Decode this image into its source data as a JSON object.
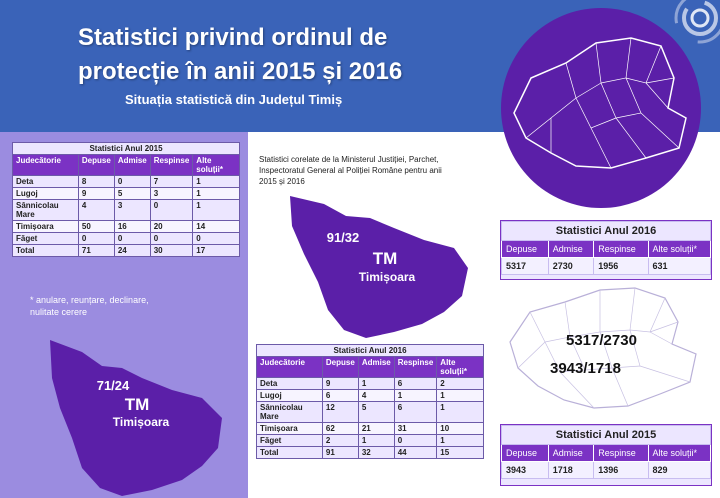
{
  "header": {
    "title_line1": "Statistici privind ordinul de",
    "title_line2": "protecție în anii 2015 și 2016",
    "subtitle": "Situația statistică din Județul Timiș"
  },
  "table_2015_left": {
    "caption": "Statistici Anul 2015",
    "columns": [
      "Judecătorie",
      "Depuse",
      "Admise",
      "Respinse",
      "Alte soluții*"
    ],
    "rows": [
      [
        "Deta",
        "8",
        "0",
        "7",
        "1"
      ],
      [
        "Lugoj",
        "9",
        "5",
        "3",
        "1"
      ],
      [
        "Sânnicolau Mare",
        "4",
        "3",
        "0",
        "1"
      ],
      [
        "Timișoara",
        "50",
        "16",
        "20",
        "14"
      ],
      [
        "Făget",
        "0",
        "0",
        "0",
        "0"
      ],
      [
        "Total",
        "71",
        "24",
        "30",
        "17"
      ]
    ]
  },
  "note": "* anulare, reunțare, declinare, nulitate cerere",
  "tm_2015": {
    "ratio": "71/24",
    "code": "TM",
    "city": "Timișoara"
  },
  "tm_2016": {
    "ratio": "91/32",
    "code": "TM",
    "city": "Timișoara"
  },
  "source_text": "Statistici corelate de la Ministerul Justiției, Parchet, Inspectoratul General al Poliției Române pentru anii 2015 și 2016",
  "table_2016_center": {
    "caption": "Statistici Anul 2016",
    "columns": [
      "Judecătorie",
      "Depuse",
      "Admise",
      "Respinse",
      "Alte soluții*"
    ],
    "rows": [
      [
        "Deta",
        "9",
        "1",
        "6",
        "2"
      ],
      [
        "Lugoj",
        "6",
        "4",
        "1",
        "1"
      ],
      [
        "Sânnicolau Mare",
        "12",
        "5",
        "6",
        "1"
      ],
      [
        "Timișoara",
        "62",
        "21",
        "31",
        "10"
      ],
      [
        "Făget",
        "2",
        "1",
        "0",
        "1"
      ],
      [
        "Total",
        "91",
        "32",
        "44",
        "15"
      ]
    ]
  },
  "national_2016": {
    "caption": "Statistici Anul 2016",
    "columns": [
      "Depuse",
      "Admise",
      "Respinse",
      "Alte soluții*"
    ],
    "values": [
      "5317",
      "2730",
      "1956",
      "631"
    ]
  },
  "national_2015": {
    "caption": "Statistici Anul 2015",
    "columns": [
      "Depuse",
      "Admise",
      "Respinse",
      "Alte soluții*"
    ],
    "values": [
      "3943",
      "1718",
      "1396",
      "829"
    ]
  },
  "map_labels": {
    "ratio_2016": "5317/2730",
    "ratio_2015": "3943/1718"
  },
  "colors": {
    "header": "#3a63b8",
    "purple": "#7b32c4",
    "lavender": "#9b8ce0",
    "map_dark": "#5b1fa8"
  }
}
